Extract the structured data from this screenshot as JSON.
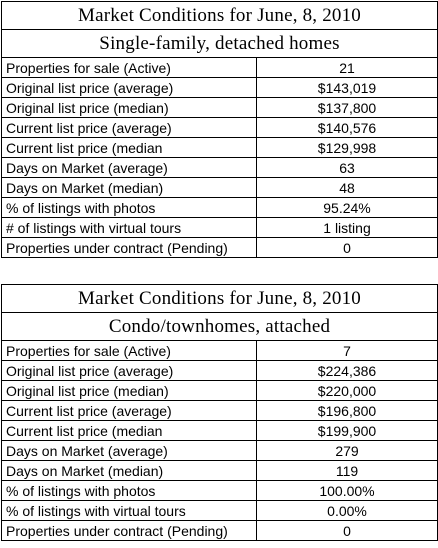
{
  "tables": [
    {
      "title": "Market Conditions for June, 8, 2010",
      "subtitle": "Single-family, detached homes",
      "rows": [
        {
          "label": "Properties for sale (Active)",
          "value": "21"
        },
        {
          "label": "Original list price (average)",
          "value": "$143,019"
        },
        {
          "label": "Original list price (median)",
          "value": "$137,800"
        },
        {
          "label": "Current list price (average)",
          "value": "$140,576"
        },
        {
          "label": "Current list price (median",
          "value": "$129,998"
        },
        {
          "label": "Days on Market (average)",
          "value": "63"
        },
        {
          "label": "Days on Market (median)",
          "value": "48"
        },
        {
          "label": "% of listings with photos",
          "value": "95.24%"
        },
        {
          "label": "# of listings with virtual tours",
          "value": "1 listing"
        },
        {
          "label": "Properties under contract (Pending)",
          "value": "0"
        }
      ]
    },
    {
      "title": "Market Conditions for June, 8, 2010",
      "subtitle": "Condo/townhomes, attached",
      "rows": [
        {
          "label": "Properties for sale (Active)",
          "value": "7"
        },
        {
          "label": "Original list price (average)",
          "value": "$224,386"
        },
        {
          "label": "Original list price (median)",
          "value": "$220,000"
        },
        {
          "label": "Current list price (average)",
          "value": "$196,800"
        },
        {
          "label": "Current list price (median",
          "value": "$199,900"
        },
        {
          "label": "Days on Market (average)",
          "value": "279"
        },
        {
          "label": "Days on Market (median)",
          "value": "119"
        },
        {
          "label": "% of listings with photos",
          "value": "100.00%"
        },
        {
          "label": "% of listings with virtual tours",
          "value": "0.00%"
        },
        {
          "label": "Properties under contract (Pending)",
          "value": "0"
        }
      ]
    }
  ]
}
